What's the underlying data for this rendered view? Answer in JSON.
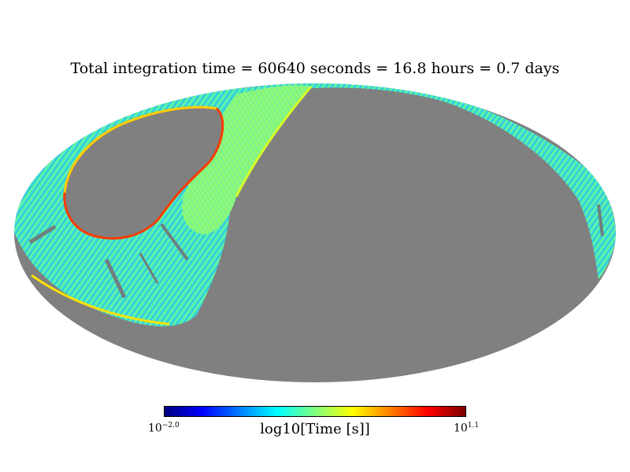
{
  "chart_data": {
    "type": "heatmap",
    "projection": "mollweide",
    "title": "Total integration time = 60640 seconds = 16.8 hours = 0.7 days",
    "colorbar": {
      "label": "log10[Time [s]]",
      "min_base": "10",
      "min_exp": "−2.0",
      "max_base": "10",
      "max_exp": "1.1",
      "range": [
        -2.0,
        1.1
      ],
      "colormap": "jet",
      "colors": [
        "#00007f",
        "#0000ff",
        "#007fff",
        "#00ffff",
        "#7fff7f",
        "#ffff00",
        "#ff7f00",
        "#ff0000",
        "#7f0000"
      ]
    },
    "unobserved_color": "#808080",
    "grid": false
  }
}
